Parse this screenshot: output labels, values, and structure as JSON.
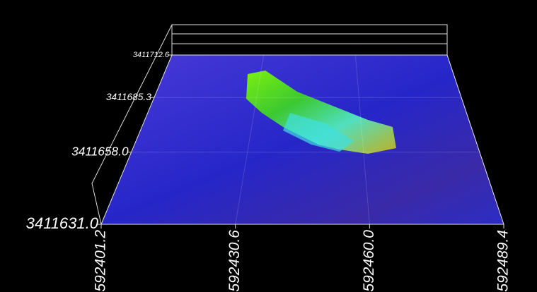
{
  "chart_data": {
    "type": "surface3d",
    "xlim": [
      592401.2,
      592489.4
    ],
    "xticks": [
      592401.2,
      592430.6,
      {
        "value": 592460,
        "label": "592460.0"
      },
      592489.4
    ],
    "ylim": [
      3411631,
      3411712.6
    ],
    "yticks": [
      {
        "value": 3411631,
        "label": "3411631.0"
      },
      {
        "value": 3411658,
        "label": "3411658.0"
      },
      3411685.3,
      3411712.6
    ]
  }
}
